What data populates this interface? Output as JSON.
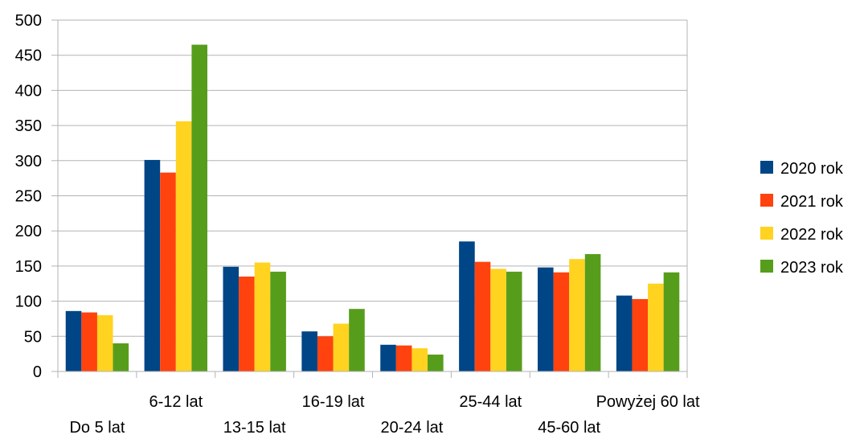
{
  "chart_data": {
    "type": "bar",
    "categories": [
      "Do 5 lat",
      "6-12 lat",
      "13-15 lat",
      "16-19 lat",
      "20-24 lat",
      "25-44 lat",
      "45-60 lat",
      "Powyżej 60 lat"
    ],
    "series": [
      {
        "name": "2020 rok",
        "color": "#004586",
        "values": [
          86,
          301,
          149,
          57,
          38,
          185,
          148,
          108
        ]
      },
      {
        "name": "2021 rok",
        "color": "#ff420e",
        "values": [
          84,
          283,
          135,
          50,
          37,
          156,
          141,
          103
        ]
      },
      {
        "name": "2022 rok",
        "color": "#ffd320",
        "values": [
          80,
          356,
          155,
          68,
          33,
          146,
          160,
          125
        ]
      },
      {
        "name": "2023 rok",
        "color": "#579d1c",
        "values": [
          40,
          465,
          142,
          89,
          24,
          142,
          167,
          141
        ]
      }
    ],
    "ylim": [
      0,
      500
    ],
    "yticks": [
      0,
      50,
      100,
      150,
      200,
      250,
      300,
      350,
      400,
      450,
      500
    ],
    "grid": true,
    "legend": "right"
  }
}
